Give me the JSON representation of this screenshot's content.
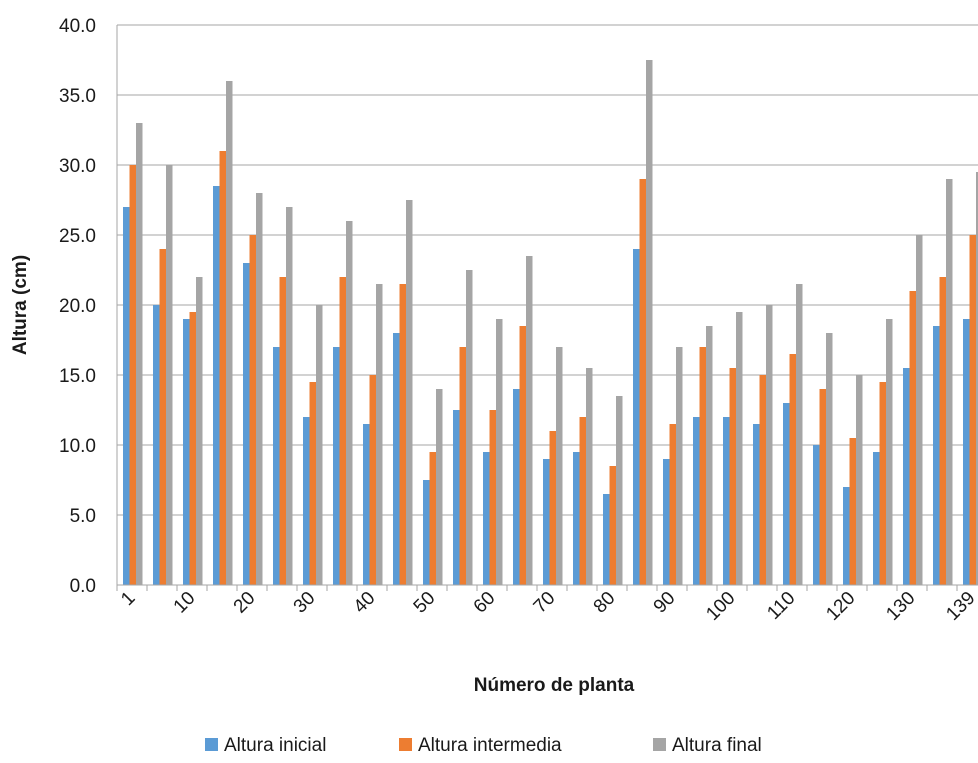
{
  "chart_data": {
    "type": "bar",
    "title": "",
    "xlabel": "Número de planta",
    "ylabel": "Altura (cm)",
    "ylim": [
      0,
      40
    ],
    "yticks": [
      "0.0",
      "5.0",
      "10.0",
      "15.0",
      "20.0",
      "25.0",
      "30.0",
      "35.0",
      "40.0"
    ],
    "categories": [
      "1",
      "",
      "10",
      "",
      "20",
      "",
      "30",
      "",
      "40",
      "",
      "50",
      "",
      "60",
      "",
      "70",
      "",
      "80",
      "",
      "90",
      "",
      "100",
      "",
      "110",
      "",
      "120",
      "",
      "130",
      "",
      "139"
    ],
    "series": [
      {
        "name": "Altura inicial",
        "color": "#5b9bd5",
        "values": [
          27,
          20,
          19,
          28.5,
          23,
          17,
          12,
          17,
          11.5,
          18,
          7.5,
          12.5,
          9.5,
          14,
          9,
          9.5,
          6.5,
          24,
          9,
          12,
          12,
          11.5,
          13,
          10,
          7,
          9.5,
          15.5,
          18.5,
          19
        ]
      },
      {
        "name": "Altura intermedia",
        "color": "#ed7d31",
        "values": [
          30,
          24,
          19.5,
          31,
          25,
          22,
          14.5,
          22,
          15,
          21.5,
          9.5,
          17,
          12.5,
          18.5,
          11,
          12,
          8.5,
          29,
          11.5,
          17,
          15.5,
          15,
          16.5,
          14,
          10.5,
          14.5,
          21,
          22,
          25
        ]
      },
      {
        "name": "Altura final",
        "color": "#a5a5a5",
        "values": [
          33,
          30,
          22,
          36,
          28,
          27,
          20,
          26,
          21.5,
          27.5,
          14,
          22.5,
          19,
          23.5,
          17,
          15.5,
          13.5,
          37.5,
          17,
          18.5,
          19.5,
          20,
          21.5,
          18,
          15,
          19,
          25,
          29,
          29.5
        ]
      }
    ],
    "grid": true,
    "legend": "bottom"
  }
}
